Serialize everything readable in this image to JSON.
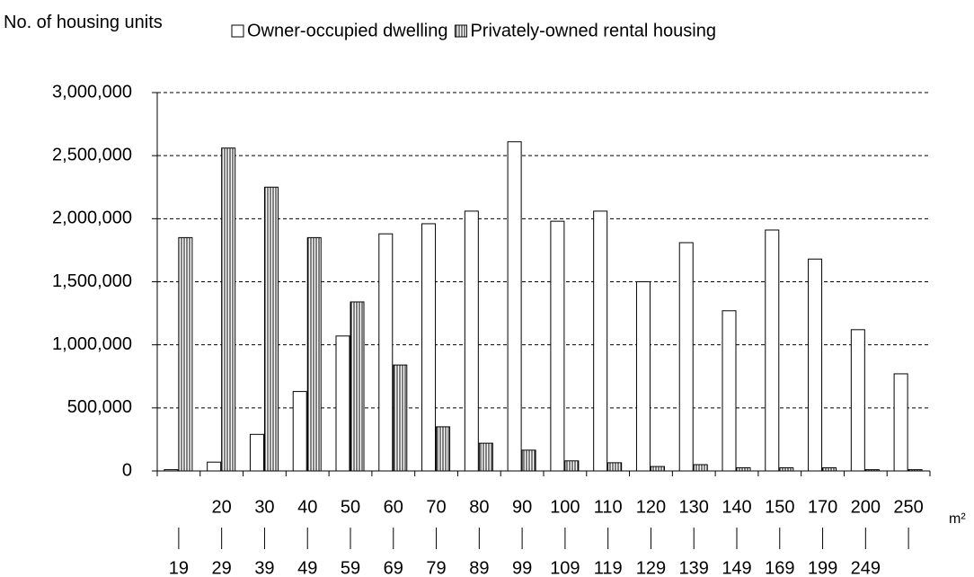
{
  "chart_data": {
    "type": "bar",
    "y_axis_title": "No. of housing units",
    "x_unit": "m²",
    "categories": [
      {
        "to": "19"
      },
      {
        "from": "20",
        "to": "29"
      },
      {
        "from": "30",
        "to": "39"
      },
      {
        "from": "40",
        "to": "49"
      },
      {
        "from": "50",
        "to": "59"
      },
      {
        "from": "60",
        "to": "69"
      },
      {
        "from": "70",
        "to": "79"
      },
      {
        "from": "80",
        "to": "89"
      },
      {
        "from": "90",
        "to": "99"
      },
      {
        "from": "100",
        "to": "109"
      },
      {
        "from": "110",
        "to": "119"
      },
      {
        "from": "120",
        "to": "129"
      },
      {
        "from": "130",
        "to": "139"
      },
      {
        "from": "140",
        "to": "149"
      },
      {
        "from": "150",
        "to": "169"
      },
      {
        "from": "170",
        "to": "199"
      },
      {
        "from": "200",
        "to": "249"
      },
      {
        "from": "250"
      }
    ],
    "series": [
      {
        "name": "Owner-occupied dwelling",
        "color": "#ffffff",
        "values": [
          10000,
          70000,
          290000,
          630000,
          1070000,
          1880000,
          1960000,
          2060000,
          2610000,
          1980000,
          2060000,
          1500000,
          1810000,
          1270000,
          1910000,
          1680000,
          1120000,
          770000
        ]
      },
      {
        "name": "Privately-owned rental housing",
        "color": "#ffffff",
        "pattern": "vertical-stripes",
        "values": [
          1850000,
          2560000,
          2250000,
          1850000,
          1340000,
          840000,
          350000,
          220000,
          165000,
          80000,
          65000,
          35000,
          50000,
          25000,
          25000,
          25000,
          10000,
          10000
        ]
      }
    ],
    "ylim": [
      0,
      3000000
    ],
    "yticks": [
      0,
      {
        "value": 500000,
        "label": "500,000"
      },
      {
        "value": 1000000,
        "label": "1,000,000"
      },
      {
        "value": 1500000,
        "label": "1,500,000"
      },
      {
        "value": 2000000,
        "label": "2,000,000"
      },
      {
        "value": 2500000,
        "label": "2,500,000"
      },
      {
        "value": 3000000,
        "label": "3,000,000"
      }
    ],
    "grid": true,
    "legend": "top"
  }
}
